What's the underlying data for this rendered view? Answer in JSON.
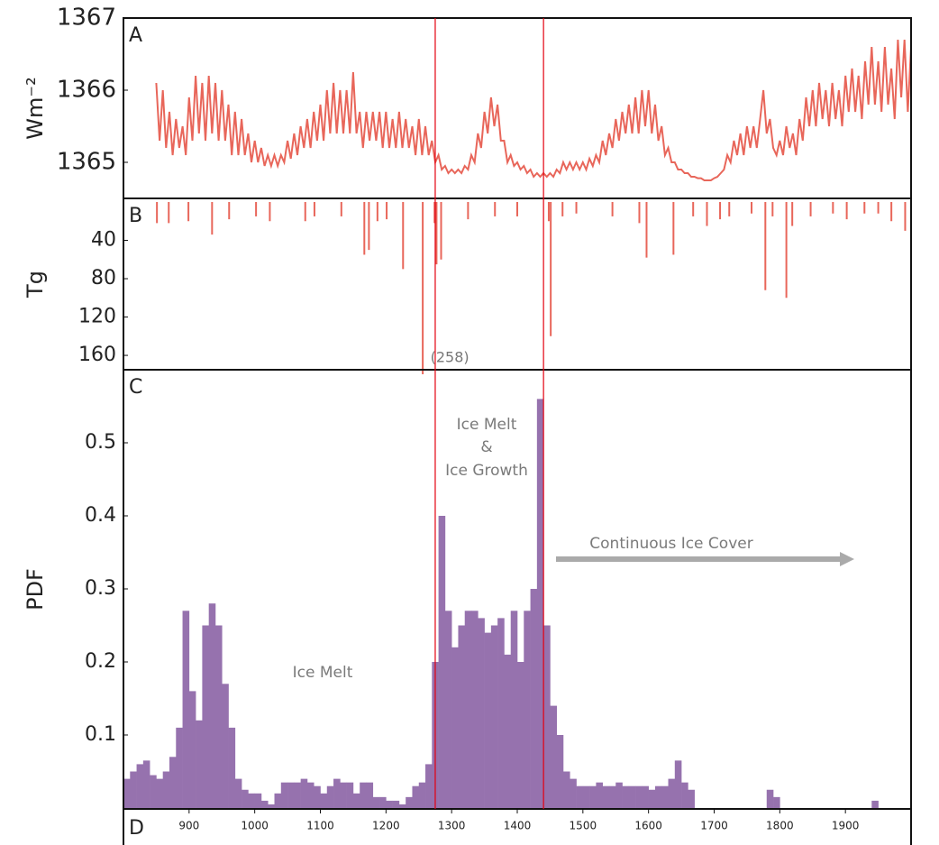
{
  "chart_data": [
    {
      "type": "line",
      "panel": "A",
      "y_label": "Wm⁻²",
      "color": "#e8665a",
      "xlim": [
        800,
        2000
      ],
      "ylim": [
        1364.5,
        1367
      ],
      "yticks": [
        1365,
        1366,
        1367
      ],
      "x": [
        850,
        855,
        860,
        865,
        870,
        875,
        880,
        885,
        890,
        895,
        900,
        905,
        910,
        915,
        920,
        925,
        930,
        935,
        940,
        945,
        950,
        955,
        960,
        965,
        970,
        975,
        980,
        985,
        990,
        995,
        1000,
        1005,
        1010,
        1015,
        1020,
        1025,
        1030,
        1035,
        1040,
        1045,
        1050,
        1055,
        1060,
        1065,
        1070,
        1075,
        1080,
        1085,
        1090,
        1095,
        1100,
        1105,
        1110,
        1115,
        1120,
        1125,
        1130,
        1135,
        1140,
        1145,
        1150,
        1155,
        1160,
        1165,
        1170,
        1175,
        1180,
        1185,
        1190,
        1195,
        1200,
        1205,
        1210,
        1215,
        1220,
        1225,
        1230,
        1235,
        1240,
        1245,
        1250,
        1255,
        1260,
        1265,
        1270,
        1275,
        1280,
        1285,
        1290,
        1295,
        1300,
        1305,
        1310,
        1315,
        1320,
        1325,
        1330,
        1335,
        1340,
        1345,
        1350,
        1355,
        1360,
        1365,
        1370,
        1375,
        1380,
        1385,
        1390,
        1395,
        1400,
        1405,
        1410,
        1415,
        1420,
        1425,
        1430,
        1435,
        1440,
        1445,
        1450,
        1455,
        1460,
        1465,
        1470,
        1475,
        1480,
        1485,
        1490,
        1495,
        1500,
        1505,
        1510,
        1515,
        1520,
        1525,
        1530,
        1535,
        1540,
        1545,
        1550,
        1555,
        1560,
        1565,
        1570,
        1575,
        1580,
        1585,
        1590,
        1595,
        1600,
        1605,
        1610,
        1615,
        1620,
        1625,
        1630,
        1635,
        1640,
        1645,
        1650,
        1655,
        1660,
        1665,
        1670,
        1675,
        1680,
        1685,
        1690,
        1695,
        1700,
        1705,
        1710,
        1715,
        1720,
        1725,
        1730,
        1735,
        1740,
        1745,
        1750,
        1755,
        1760,
        1765,
        1770,
        1775,
        1780,
        1785,
        1790,
        1795,
        1800,
        1805,
        1810,
        1815,
        1820,
        1825,
        1830,
        1835,
        1840,
        1845,
        1850,
        1855,
        1860,
        1865,
        1870,
        1875,
        1880,
        1885,
        1890,
        1895,
        1900,
        1905,
        1910,
        1915,
        1920,
        1925,
        1930,
        1935,
        1940,
        1945,
        1950,
        1955,
        1960,
        1965,
        1970,
        1975,
        1980,
        1985,
        1990,
        1995,
        2000
      ],
      "values": [
        1366.1,
        1365.3,
        1366.0,
        1365.2,
        1365.7,
        1365.1,
        1365.6,
        1365.2,
        1365.5,
        1365.1,
        1365.9,
        1365.3,
        1366.2,
        1365.4,
        1366.1,
        1365.3,
        1366.2,
        1365.4,
        1366.1,
        1365.3,
        1366.0,
        1365.3,
        1365.8,
        1365.1,
        1365.7,
        1365.1,
        1365.6,
        1365.1,
        1365.4,
        1365.0,
        1365.3,
        1365.0,
        1365.2,
        1364.95,
        1365.1,
        1364.95,
        1365.1,
        1364.95,
        1365.1,
        1365.0,
        1365.3,
        1365.05,
        1365.4,
        1365.1,
        1365.5,
        1365.2,
        1365.6,
        1365.2,
        1365.7,
        1365.3,
        1365.8,
        1365.3,
        1366.0,
        1365.4,
        1366.1,
        1365.4,
        1366.0,
        1365.4,
        1366.0,
        1365.4,
        1366.25,
        1365.4,
        1365.7,
        1365.2,
        1365.7,
        1365.3,
        1365.7,
        1365.3,
        1365.7,
        1365.2,
        1365.7,
        1365.2,
        1365.6,
        1365.2,
        1365.7,
        1365.2,
        1365.6,
        1365.2,
        1365.5,
        1365.1,
        1365.6,
        1365.1,
        1365.5,
        1365.1,
        1365.3,
        1365.0,
        1365.1,
        1364.9,
        1364.95,
        1364.85,
        1364.9,
        1364.85,
        1364.9,
        1364.85,
        1364.95,
        1364.9,
        1365.1,
        1365.0,
        1365.4,
        1365.2,
        1365.7,
        1365.4,
        1365.9,
        1365.5,
        1365.8,
        1365.3,
        1365.3,
        1365.0,
        1365.1,
        1364.95,
        1365.0,
        1364.9,
        1364.95,
        1364.85,
        1364.9,
        1364.8,
        1364.85,
        1364.8,
        1364.85,
        1364.8,
        1364.85,
        1364.8,
        1364.9,
        1364.85,
        1365.0,
        1364.9,
        1365.0,
        1364.9,
        1365.0,
        1364.9,
        1365.0,
        1364.9,
        1365.05,
        1364.95,
        1365.1,
        1365.0,
        1365.3,
        1365.1,
        1365.4,
        1365.2,
        1365.6,
        1365.3,
        1365.7,
        1365.4,
        1365.8,
        1365.4,
        1365.9,
        1365.4,
        1366.0,
        1365.5,
        1366.0,
        1365.4,
        1365.8,
        1365.3,
        1365.5,
        1365.1,
        1365.2,
        1365.0,
        1365.0,
        1364.9,
        1364.9,
        1364.85,
        1364.85,
        1364.8,
        1364.8,
        1364.78,
        1364.78,
        1364.75,
        1364.75,
        1364.75,
        1364.78,
        1364.8,
        1364.85,
        1364.9,
        1365.1,
        1365.0,
        1365.3,
        1365.1,
        1365.4,
        1365.1,
        1365.5,
        1365.2,
        1365.5,
        1365.2,
        1365.6,
        1366.0,
        1365.4,
        1365.6,
        1365.2,
        1365.1,
        1365.3,
        1365.1,
        1365.5,
        1365.2,
        1365.4,
        1365.1,
        1365.6,
        1365.3,
        1365.9,
        1365.5,
        1366.0,
        1365.5,
        1366.1,
        1365.6,
        1366.0,
        1365.5,
        1366.1,
        1365.6,
        1366.0,
        1365.5,
        1366.2,
        1365.7,
        1366.3,
        1365.7,
        1366.2,
        1365.6,
        1366.4,
        1365.8,
        1366.6,
        1365.8,
        1366.4,
        1365.7,
        1366.6,
        1365.8,
        1366.3,
        1365.6,
        1366.7,
        1365.9,
        1366.7,
        1365.7,
        1366.6
      ]
    },
    {
      "type": "bar",
      "panel": "B",
      "y_label": "Tg",
      "color": "#e8665a",
      "xlim": [
        800,
        2000
      ],
      "ylim": [
        0,
        175
      ],
      "y_inverted": true,
      "yticks": [
        40,
        80,
        120,
        160
      ],
      "x": [
        851,
        869,
        899,
        935,
        961,
        1002,
        1023,
        1077,
        1091,
        1132,
        1167,
        1174,
        1187,
        1201,
        1226,
        1256,
        1274,
        1277,
        1284,
        1325,
        1366,
        1400,
        1448,
        1451,
        1469,
        1490,
        1545,
        1586,
        1597,
        1638,
        1668,
        1689,
        1709,
        1723,
        1757,
        1778,
        1789,
        1810,
        1819,
        1847,
        1881,
        1902,
        1929,
        1950,
        1970,
        1991
      ],
      "values": [
        22,
        22,
        20,
        34,
        18,
        15,
        20,
        20,
        15,
        15,
        55,
        50,
        20,
        18,
        70,
        258,
        22,
        65,
        60,
        18,
        15,
        15,
        20,
        140,
        15,
        12,
        15,
        22,
        58,
        55,
        15,
        25,
        18,
        15,
        12,
        92,
        15,
        100,
        25,
        15,
        12,
        18,
        12,
        12,
        20,
        30
      ],
      "value_labels": [
        null,
        null,
        null,
        null,
        null,
        null,
        null,
        null,
        null,
        null,
        null,
        null,
        null,
        null,
        null,
        "(258)",
        null,
        null,
        null,
        null,
        null,
        null,
        null,
        null,
        null,
        null,
        null,
        null,
        null,
        null,
        null,
        null,
        null,
        null,
        null,
        null,
        null,
        null,
        null,
        null,
        null,
        null,
        null,
        null,
        null,
        null
      ]
    },
    {
      "type": "histogram",
      "panel": "C",
      "y_label": "PDF",
      "color": "#9672ae",
      "xlim": [
        800,
        2000
      ],
      "ylim": [
        0,
        0.6
      ],
      "yticks": [
        0.1,
        0.2,
        0.3,
        0.4,
        0.5
      ],
      "xticks": [
        900,
        1000,
        1100,
        1200,
        1300,
        1400,
        1500,
        1600,
        1700,
        1800,
        1900
      ],
      "x_panel": "D",
      "bins": [
        800,
        810,
        820,
        830,
        840,
        850,
        860,
        870,
        880,
        890,
        900,
        910,
        920,
        930,
        940,
        950,
        960,
        970,
        980,
        990,
        1000,
        1010,
        1020,
        1030,
        1040,
        1050,
        1060,
        1070,
        1080,
        1090,
        1100,
        1110,
        1120,
        1130,
        1140,
        1150,
        1160,
        1170,
        1180,
        1190,
        1200,
        1210,
        1220,
        1230,
        1240,
        1250,
        1260,
        1270,
        1280,
        1290,
        1300,
        1310,
        1320,
        1330,
        1340,
        1350,
        1360,
        1370,
        1380,
        1390,
        1400,
        1410,
        1420,
        1430,
        1440,
        1450,
        1460,
        1470,
        1480,
        1490,
        1500,
        1510,
        1520,
        1530,
        1540,
        1550,
        1560,
        1570,
        1580,
        1590,
        1600,
        1610,
        1620,
        1630,
        1640,
        1650,
        1660,
        1670,
        1680,
        1690,
        1700,
        1710,
        1720,
        1730,
        1740,
        1750,
        1760,
        1770,
        1780,
        1790,
        1800,
        1810,
        1820,
        1830,
        1840,
        1850,
        1860,
        1870,
        1880,
        1890,
        1900,
        1910,
        1920,
        1930,
        1940,
        1950,
        1960,
        1970,
        1980,
        1990,
        2000
      ],
      "values": [
        0.04,
        0.05,
        0.06,
        0.065,
        0.045,
        0.04,
        0.05,
        0.07,
        0.11,
        0.27,
        0.16,
        0.12,
        0.25,
        0.28,
        0.25,
        0.17,
        0.11,
        0.04,
        0.025,
        0.02,
        0.02,
        0.01,
        0.005,
        0.02,
        0.035,
        0.035,
        0.035,
        0.04,
        0.035,
        0.03,
        0.02,
        0.03,
        0.04,
        0.035,
        0.035,
        0.02,
        0.035,
        0.035,
        0.015,
        0.015,
        0.01,
        0.01,
        0.005,
        0.015,
        0.03,
        0.035,
        0.06,
        0.2,
        0.4,
        0.27,
        0.22,
        0.25,
        0.27,
        0.27,
        0.26,
        0.24,
        0.25,
        0.26,
        0.21,
        0.27,
        0.2,
        0.27,
        0.3,
        0.56,
        0.25,
        0.14,
        0.1,
        0.05,
        0.04,
        0.03,
        0.03,
        0.03,
        0.035,
        0.03,
        0.03,
        0.035,
        0.03,
        0.03,
        0.03,
        0.03,
        0.025,
        0.03,
        0.03,
        0.04,
        0.065,
        0.035,
        0.025,
        0,
        0,
        0,
        0,
        0,
        0,
        0,
        0,
        0,
        0,
        0,
        0.025,
        0.015,
        0,
        0,
        0,
        0,
        0,
        0,
        0,
        0,
        0,
        0,
        0,
        0,
        0,
        0,
        0.01,
        0,
        0,
        0,
        0,
        0
      ],
      "annotations": [
        "Ice Melt",
        "Ice Melt",
        "&",
        "Ice Growth",
        "Continuous Ice Cover"
      ]
    }
  ],
  "reference_lines": [
    1275,
    1440
  ],
  "reference_line_color": "#e3000f"
}
